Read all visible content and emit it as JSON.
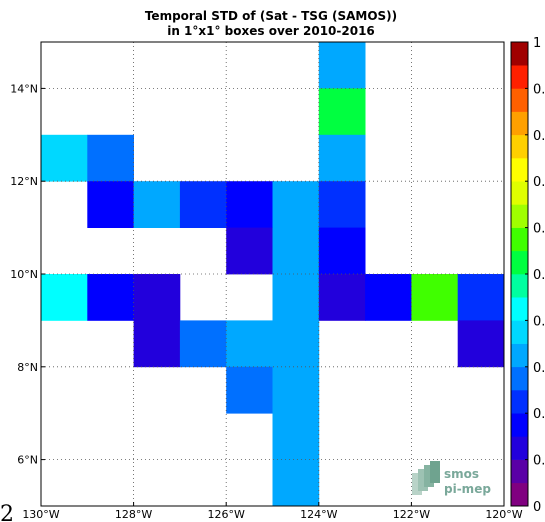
{
  "chart_data": {
    "type": "heatmap",
    "title": [
      "Temporal STD of (Sat - TSG (SAMOS))",
      "in 1°x1° boxes over 2010-2016"
    ],
    "xlabel": "",
    "ylabel": "",
    "xlim": [
      -130,
      -120
    ],
    "ylim": [
      5,
      15
    ],
    "x_ticks": [
      {
        "value": -130,
        "label": "130°W"
      },
      {
        "value": -128,
        "label": "128°W"
      },
      {
        "value": -126,
        "label": "126°W"
      },
      {
        "value": -124,
        "label": "124°W"
      },
      {
        "value": -122,
        "label": "122°W"
      },
      {
        "value": -120,
        "label": "120°W"
      }
    ],
    "y_ticks": [
      {
        "value": 6,
        "label": "6°N"
      },
      {
        "value": 8,
        "label": "8°N"
      },
      {
        "value": 10,
        "label": "10°N"
      },
      {
        "value": 12,
        "label": "12°N"
      },
      {
        "value": 14,
        "label": "14°N"
      }
    ],
    "grid": true,
    "cell_size_deg": 1,
    "cells": [
      {
        "lon": -124,
        "lat": 14,
        "value": 0.32
      },
      {
        "lon": -124,
        "lat": 13,
        "value": 0.52
      },
      {
        "lon": -130,
        "lat": 12,
        "value": 0.38
      },
      {
        "lon": -129,
        "lat": 12,
        "value": 0.25
      },
      {
        "lon": -124,
        "lat": 12,
        "value": 0.32
      },
      {
        "lon": -129,
        "lat": 11,
        "value": 0.18
      },
      {
        "lon": -128,
        "lat": 11,
        "value": 0.32
      },
      {
        "lon": -127,
        "lat": 11,
        "value": 0.24
      },
      {
        "lon": -126,
        "lat": 11,
        "value": 0.19
      },
      {
        "lon": -125,
        "lat": 11,
        "value": 0.32
      },
      {
        "lon": -124,
        "lat": 11,
        "value": 0.24
      },
      {
        "lon": -126,
        "lat": 10,
        "value": 0.12
      },
      {
        "lon": -125,
        "lat": 10,
        "value": 0.32
      },
      {
        "lon": -124,
        "lat": 10,
        "value": 0.19
      },
      {
        "lon": -130,
        "lat": 9,
        "value": 0.42
      },
      {
        "lon": -129,
        "lat": 9,
        "value": 0.19
      },
      {
        "lon": -128,
        "lat": 9,
        "value": 0.12
      },
      {
        "lon": -125,
        "lat": 9,
        "value": 0.32
      },
      {
        "lon": -124,
        "lat": 9,
        "value": 0.12
      },
      {
        "lon": -123,
        "lat": 9,
        "value": 0.19
      },
      {
        "lon": -122,
        "lat": 9,
        "value": 0.58
      },
      {
        "lon": -121,
        "lat": 9,
        "value": 0.22
      },
      {
        "lon": -128,
        "lat": 8,
        "value": 0.12
      },
      {
        "lon": -127,
        "lat": 8,
        "value": 0.25
      },
      {
        "lon": -126,
        "lat": 8,
        "value": 0.32
      },
      {
        "lon": -125,
        "lat": 8,
        "value": 0.32
      },
      {
        "lon": -121,
        "lat": 8,
        "value": 0.12
      },
      {
        "lon": -126,
        "lat": 7,
        "value": 0.25
      },
      {
        "lon": -125,
        "lat": 7,
        "value": 0.32
      },
      {
        "lon": -125,
        "lat": 6,
        "value": 0.32
      },
      {
        "lon": -125,
        "lat": 5,
        "value": 0.32
      }
    ],
    "colorbar": {
      "range": [
        0,
        1
      ],
      "levels": 20,
      "visible_tick_labels": [
        {
          "value": 1,
          "label": "1"
        },
        {
          "value": 0.9,
          "label": "0."
        },
        {
          "value": 0.8,
          "label": "0."
        },
        {
          "value": 0.7,
          "label": "0."
        },
        {
          "value": 0.6,
          "label": "0."
        },
        {
          "value": 0.5,
          "label": "0."
        },
        {
          "value": 0.4,
          "label": "0."
        },
        {
          "value": 0.3,
          "label": "0."
        },
        {
          "value": 0.2,
          "label": "0."
        },
        {
          "value": 0.1,
          "label": "0."
        },
        {
          "value": 0,
          "label": "0"
        }
      ],
      "colors": [
        "#800080",
        "#5a00a6",
        "#2200dc",
        "#0000ff",
        "#0030ff",
        "#0070ff",
        "#00a8ff",
        "#00d8ff",
        "#00ffff",
        "#00ffa0",
        "#00ff40",
        "#40ff00",
        "#a0ff00",
        "#e0ff00",
        "#ffff00",
        "#ffd000",
        "#ffa000",
        "#ff6000",
        "#ff2000",
        "#a00000"
      ]
    },
    "edge_glyph": "2",
    "logo": {
      "line1": "smos",
      "line2": "pi-mep"
    }
  }
}
